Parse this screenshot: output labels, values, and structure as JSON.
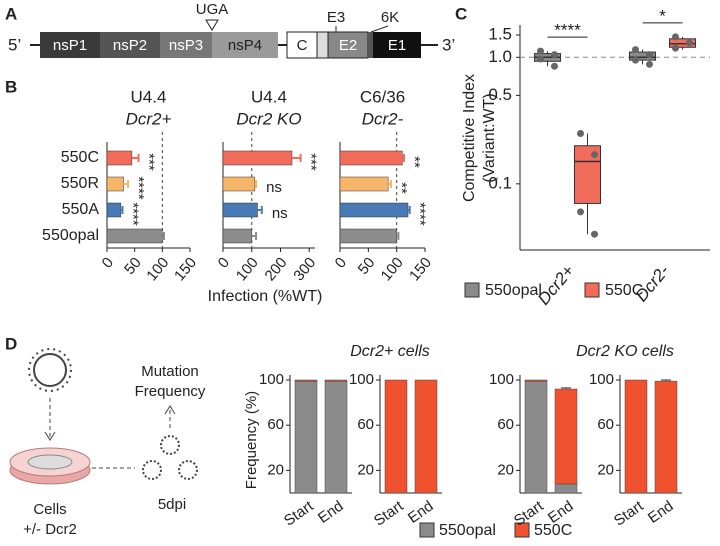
{
  "panel_labels": [
    "A",
    "B",
    "C",
    "D"
  ],
  "genome": {
    "five_prime": "5’",
    "three_prime": "3’",
    "stop_codon": "UGA",
    "segments": [
      "nsP1",
      "nsP2",
      "nsP3",
      "nsP4",
      "C",
      "E3",
      "E2",
      "6K",
      "E1"
    ]
  },
  "infection_axis_label": "Infection (%WT)",
  "schematic": {
    "mutation_frequency": [
      "Mutation",
      "Frequency"
    ],
    "cells": "Cells",
    "condition": "+/- Dcr2",
    "timepoint": "5dpi"
  },
  "chart_data": [
    {
      "type": "hbar",
      "title": "U4.4",
      "subtitle": "Dcr2+",
      "categories": [
        "550C",
        "550R",
        "550A",
        "550opal"
      ],
      "values": [
        45,
        30,
        25,
        100
      ],
      "errors": [
        12,
        8,
        3,
        3
      ],
      "colors": [
        "#f26c5c",
        "#f7b56a",
        "#4a7ab5",
        "#8c8c8c"
      ],
      "significance": [
        "***",
        "****",
        "****",
        null
      ],
      "xlim": [
        0,
        150
      ],
      "xticks": [
        0,
        50,
        100,
        150
      ],
      "reference_line": 100
    },
    {
      "type": "hbar",
      "title": "U4.4",
      "subtitle": "Dcr2 KO",
      "categories": [
        "550C",
        "550R",
        "550A",
        "550opal"
      ],
      "values": [
        240,
        110,
        120,
        100
      ],
      "errors": [
        30,
        5,
        15,
        15
      ],
      "colors": [
        "#f26c5c",
        "#f7b56a",
        "#4a7ab5",
        "#8c8c8c"
      ],
      "significance": [
        "***",
        "ns",
        "ns",
        null
      ],
      "xlim": [
        0,
        320
      ],
      "xticks": [
        0,
        100,
        200,
        300
      ],
      "reference_line": 100
    },
    {
      "type": "hbar",
      "title": "C6/36",
      "subtitle": "Dcr2-",
      "categories": [
        "550C",
        "550R",
        "550A",
        "550opal"
      ],
      "values": [
        110,
        85,
        120,
        100
      ],
      "errors": [
        3,
        5,
        3,
        3
      ],
      "colors": [
        "#f26c5c",
        "#f7b56a",
        "#4a7ab5",
        "#8c8c8c"
      ],
      "significance": [
        "**",
        "**",
        "****",
        null
      ],
      "xlim": [
        0,
        150
      ],
      "xticks": [
        0,
        50,
        100,
        150
      ],
      "reference_line": 100
    },
    {
      "type": "box",
      "ylabel": [
        "Competitive Index",
        "(Variant:WT)"
      ],
      "categories": [
        "Dcr2+",
        "Dcr2-"
      ],
      "yscale": "log",
      "ylim": [
        0.03,
        1.8
      ],
      "yticks": [
        0.1,
        0.5,
        {
          "value": 1.0,
          "label": "1.0"
        },
        1.5
      ],
      "reference_line": 1.0,
      "significance": [
        "****",
        "*"
      ],
      "series": [
        {
          "name": "550opal",
          "color": "#8a8a8a",
          "boxes": [
            {
              "whislo": 0.85,
              "q1": 0.93,
              "med": 1.0,
              "q3": 1.07,
              "whishi": 1.12,
              "points": [
                1.12,
                1.05,
                0.97,
                0.85
              ]
            },
            {
              "whislo": 0.88,
              "q1": 0.95,
              "med": 1.0,
              "q3": 1.1,
              "whishi": 1.15,
              "points": [
                1.15,
                1.05,
                0.95,
                0.88
              ]
            }
          ]
        },
        {
          "name": "550C",
          "color": "#f26c5c",
          "boxes": [
            {
              "whislo": 0.04,
              "q1": 0.07,
              "med": 0.15,
              "q3": 0.2,
              "whishi": 0.25,
              "points": [
                0.25,
                0.17,
                0.06,
                0.04
              ]
            },
            {
              "whislo": 1.15,
              "q1": 1.2,
              "med": 1.28,
              "q3": 1.4,
              "whishi": 1.45,
              "points": [
                1.45,
                1.3,
                1.18
              ]
            }
          ]
        }
      ]
    },
    {
      "type": "stacked_bar",
      "group_title": "Dcr2+ cells",
      "ylabel": "Frequency (%)",
      "categories": [
        "Start",
        "End"
      ],
      "ylim": [
        0,
        100
      ],
      "yticks": [
        20,
        60,
        100
      ],
      "series": [
        {
          "name": "550opal",
          "color": "#8b8b8b",
          "values": [
            99,
            99
          ]
        },
        {
          "name": "550C",
          "color": "#f0512f",
          "values": [
            1,
            1
          ]
        }
      ]
    },
    {
      "type": "stacked_bar",
      "categories": [
        "Start",
        "End"
      ],
      "ylim": [
        0,
        100
      ],
      "yticks": [
        20,
        60,
        100
      ],
      "series": [
        {
          "name": "550opal",
          "color": "#8b8b8b",
          "values": [
            0,
            0
          ]
        },
        {
          "name": "550C",
          "color": "#f0512f",
          "values": [
            100,
            100
          ]
        }
      ]
    },
    {
      "type": "stacked_bar",
      "group_title": "Dcr2 KO cells",
      "categories": [
        "Start",
        "End"
      ],
      "ylim": [
        0,
        100
      ],
      "yticks": [
        20,
        60,
        100
      ],
      "series": [
        {
          "name": "550opal",
          "color": "#8b8b8b",
          "values": [
            99,
            8
          ]
        },
        {
          "name": "550C",
          "color": "#f0512f",
          "values": [
            1,
            84
          ]
        }
      ],
      "errors": [
        null,
        1
      ]
    },
    {
      "type": "stacked_bar",
      "categories": [
        "Start",
        "End"
      ],
      "ylim": [
        0,
        100
      ],
      "yticks": [
        20,
        60,
        100
      ],
      "series": [
        {
          "name": "550opal",
          "color": "#8b8b8b",
          "values": [
            0,
            0
          ]
        },
        {
          "name": "550C",
          "color": "#f0512f",
          "values": [
            100,
            99
          ]
        }
      ],
      "errors": [
        null,
        1
      ]
    }
  ]
}
